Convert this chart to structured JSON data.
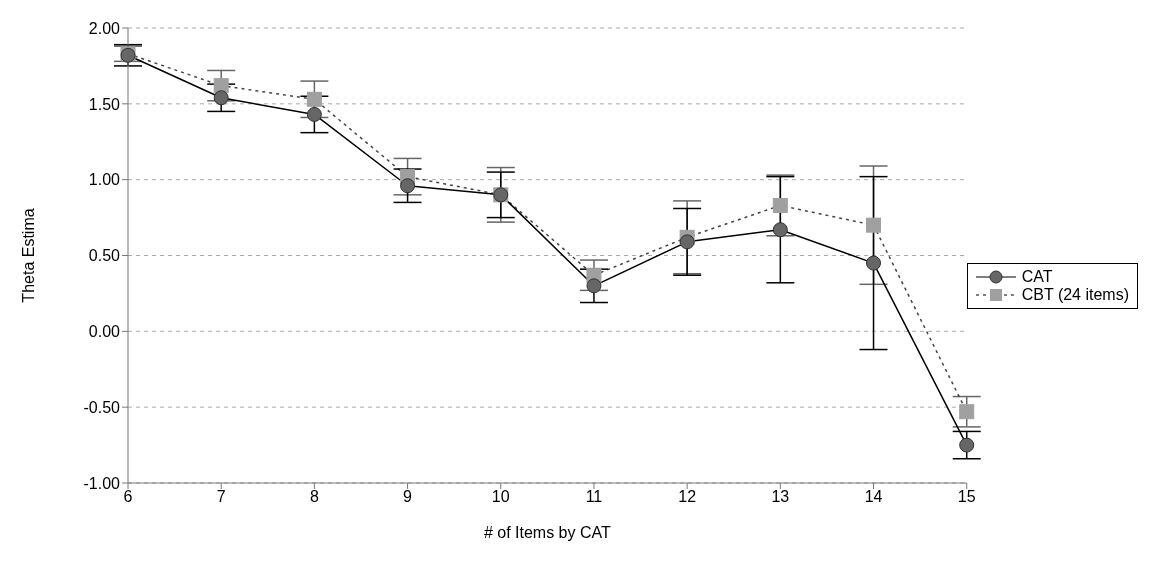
{
  "chart_data": {
    "type": "line",
    "xlabel": "# of Items by CAT",
    "ylabel": "Theta Estima",
    "categories": [
      "6",
      "7",
      "8",
      "9",
      "10",
      "11",
      "12",
      "13",
      "14",
      "15"
    ],
    "series": [
      {
        "name": "CAT",
        "color": "#666666",
        "marker": "circle",
        "line_style": "solid",
        "values": [
          1.82,
          1.54,
          1.43,
          0.96,
          0.9,
          0.3,
          0.59,
          0.67,
          0.45,
          -0.75
        ],
        "errors": [
          0.07,
          0.09,
          0.12,
          0.11,
          0.15,
          0.11,
          0.22,
          0.35,
          0.57,
          0.09
        ]
      },
      {
        "name": "CBT (24 items)",
        "color": "#a0a0a0",
        "marker": "square",
        "line_style": "dotted",
        "values": [
          1.83,
          1.62,
          1.53,
          1.02,
          0.9,
          0.37,
          0.62,
          0.83,
          0.7,
          -0.53
        ],
        "errors": [
          0.05,
          0.1,
          0.12,
          0.12,
          0.18,
          0.1,
          0.24,
          0.2,
          0.39,
          0.1
        ]
      }
    ],
    "ylim": [
      -1,
      2
    ],
    "yticks": [
      {
        "value": -1,
        "label": "-1.00"
      },
      {
        "value": -0.5,
        "label": "-0.50"
      },
      {
        "value": 0,
        "label": "0.00"
      },
      {
        "value": 0.5,
        "label": "0.50"
      },
      {
        "value": 1,
        "label": "1.00"
      },
      {
        "value": 1.5,
        "label": "1.50"
      },
      {
        "value": 2,
        "label": "2.00"
      }
    ],
    "grid": "y",
    "legend": "right"
  }
}
